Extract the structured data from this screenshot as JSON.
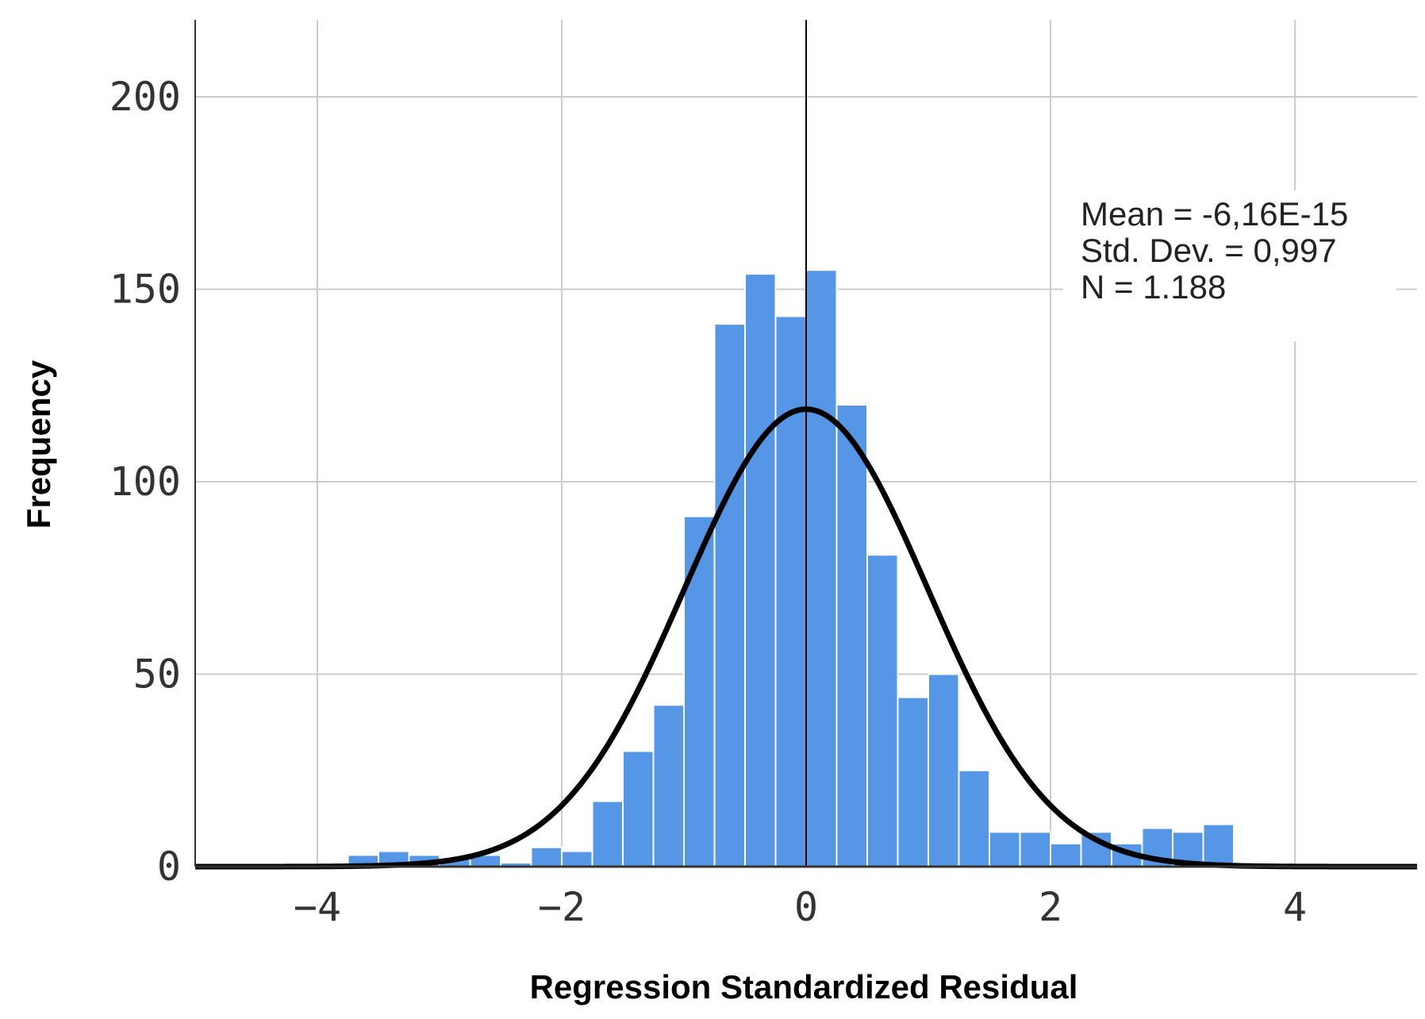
{
  "chart_data": {
    "type": "bar",
    "title": "",
    "xlabel": "Regression Standardized Residual",
    "ylabel": "Frequency",
    "xlim": [
      -5,
      5
    ],
    "ylim": [
      0,
      220
    ],
    "x_ticks": [
      -4,
      -2,
      0,
      2,
      4
    ],
    "x_tick_labels": [
      "−4",
      "−2",
      "0",
      "2",
      "4"
    ],
    "y_ticks": [
      0,
      50,
      100,
      150,
      200
    ],
    "y_tick_labels": [
      "0",
      "50",
      "100",
      "150",
      "200"
    ],
    "grid": true,
    "bin_width": 0.25,
    "bins": [
      {
        "start": -3.75,
        "value": 3
      },
      {
        "start": -3.5,
        "value": 4
      },
      {
        "start": -3.25,
        "value": 3
      },
      {
        "start": -3.0,
        "value": 2
      },
      {
        "start": -2.75,
        "value": 3
      },
      {
        "start": -2.5,
        "value": 1
      },
      {
        "start": -2.25,
        "value": 5
      },
      {
        "start": -2.0,
        "value": 4
      },
      {
        "start": -1.75,
        "value": 17
      },
      {
        "start": -1.5,
        "value": 30
      },
      {
        "start": -1.25,
        "value": 42
      },
      {
        "start": -1.0,
        "value": 91
      },
      {
        "start": -0.75,
        "value": 141
      },
      {
        "start": -0.5,
        "value": 154
      },
      {
        "start": -0.25,
        "value": 143
      },
      {
        "start": 0.0,
        "value": 155
      },
      {
        "start": 0.25,
        "value": 120
      },
      {
        "start": 0.5,
        "value": 81
      },
      {
        "start": 0.75,
        "value": 44
      },
      {
        "start": 1.0,
        "value": 50
      },
      {
        "start": 1.25,
        "value": 25
      },
      {
        "start": 1.5,
        "value": 9
      },
      {
        "start": 1.75,
        "value": 9
      },
      {
        "start": 2.0,
        "value": 6
      },
      {
        "start": 2.25,
        "value": 9
      },
      {
        "start": 2.5,
        "value": 6
      },
      {
        "start": 2.75,
        "value": 10
      },
      {
        "start": 3.0,
        "value": 9
      },
      {
        "start": 3.25,
        "value": 11
      }
    ],
    "normal_curve": {
      "mean": 0,
      "std_dev": 0.997,
      "n": 1188
    },
    "reference_line_x": 0,
    "stats": {
      "mean": "Mean = -6,16E-15",
      "std_dev": "Std. Dev. = 0,997",
      "n": "N = 1.188"
    },
    "colors": {
      "bar": "#5596E6",
      "bar_edge": "#ffffff",
      "curve": "#000000",
      "grid": "#cccccc",
      "axis": "#333333"
    }
  }
}
